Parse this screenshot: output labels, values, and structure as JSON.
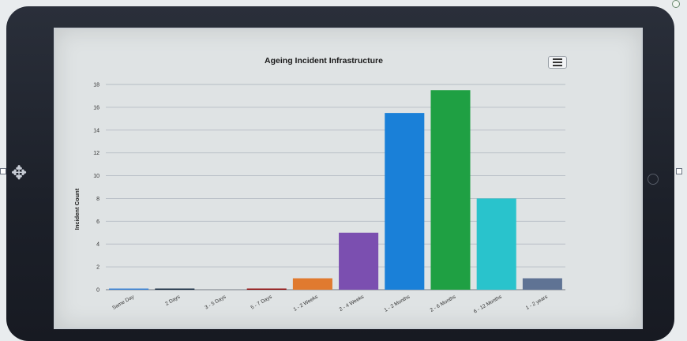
{
  "chart_data": {
    "type": "bar",
    "title": "Ageing Incident Infrastructure",
    "xlabel": "",
    "ylabel": "Incident Count",
    "ylim": [
      0,
      18
    ],
    "yticks": [
      0,
      2,
      4,
      6,
      8,
      10,
      12,
      14,
      16,
      18
    ],
    "grid": true,
    "categories": [
      "Same Day",
      "2 Days",
      "3 - 5 Days",
      "5 - 7 Days",
      "1 - 2 Weeks",
      "2 - 4 Weeks",
      "1 - 2 Months",
      "2 - 6 Months",
      "6 - 12 Months",
      "1 - 2 years"
    ],
    "values": [
      0.1,
      0.1,
      0,
      0.1,
      1,
      5,
      15.5,
      17.5,
      8,
      1
    ],
    "colors": [
      "#2f7ed8",
      "#0d233a",
      "#8bbc21",
      "#910000",
      "#e07a2f",
      "#7b4fb0",
      "#1a80d8",
      "#1fa043",
      "#29c3cc",
      "#5f7394"
    ]
  },
  "ui": {
    "menu_icon": "hamburger-icon",
    "cursor_icon": "move-cursor-icon"
  }
}
